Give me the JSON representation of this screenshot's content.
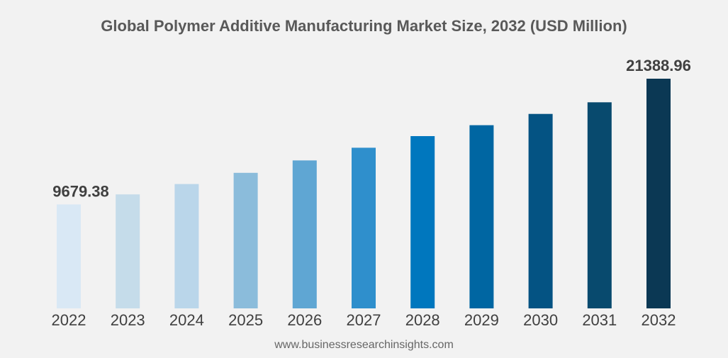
{
  "chart_data": {
    "type": "bar",
    "title": "Global Polymer Additive Manufacturing Market Size, 2032 (USD Million)",
    "xlabel": "",
    "ylabel": "",
    "categories": [
      "2022",
      "2023",
      "2024",
      "2025",
      "2026",
      "2027",
      "2028",
      "2029",
      "2030",
      "2031",
      "2032"
    ],
    "values": [
      9679.38,
      10617,
      11580,
      12620,
      13780,
      14960,
      16040,
      17060,
      18110,
      19190,
      21388.96
    ],
    "data_labels": [
      "9679.38",
      "",
      "",
      "",
      "",
      "",
      "",
      "",
      "",
      "",
      "21388.96"
    ],
    "colors": [
      "#d9e8f5",
      "#c5dcea",
      "#bad6ea",
      "#8bbcdb",
      "#5fa6d3",
      "#2f8fcc",
      "#0077be",
      "#0066a2",
      "#045383",
      "#084a6e",
      "#0b3854"
    ],
    "ylim": [
      0,
      22000
    ],
    "grid": false,
    "legend": "none"
  },
  "footer": {
    "source": "www.businessresearchinsights.com"
  }
}
